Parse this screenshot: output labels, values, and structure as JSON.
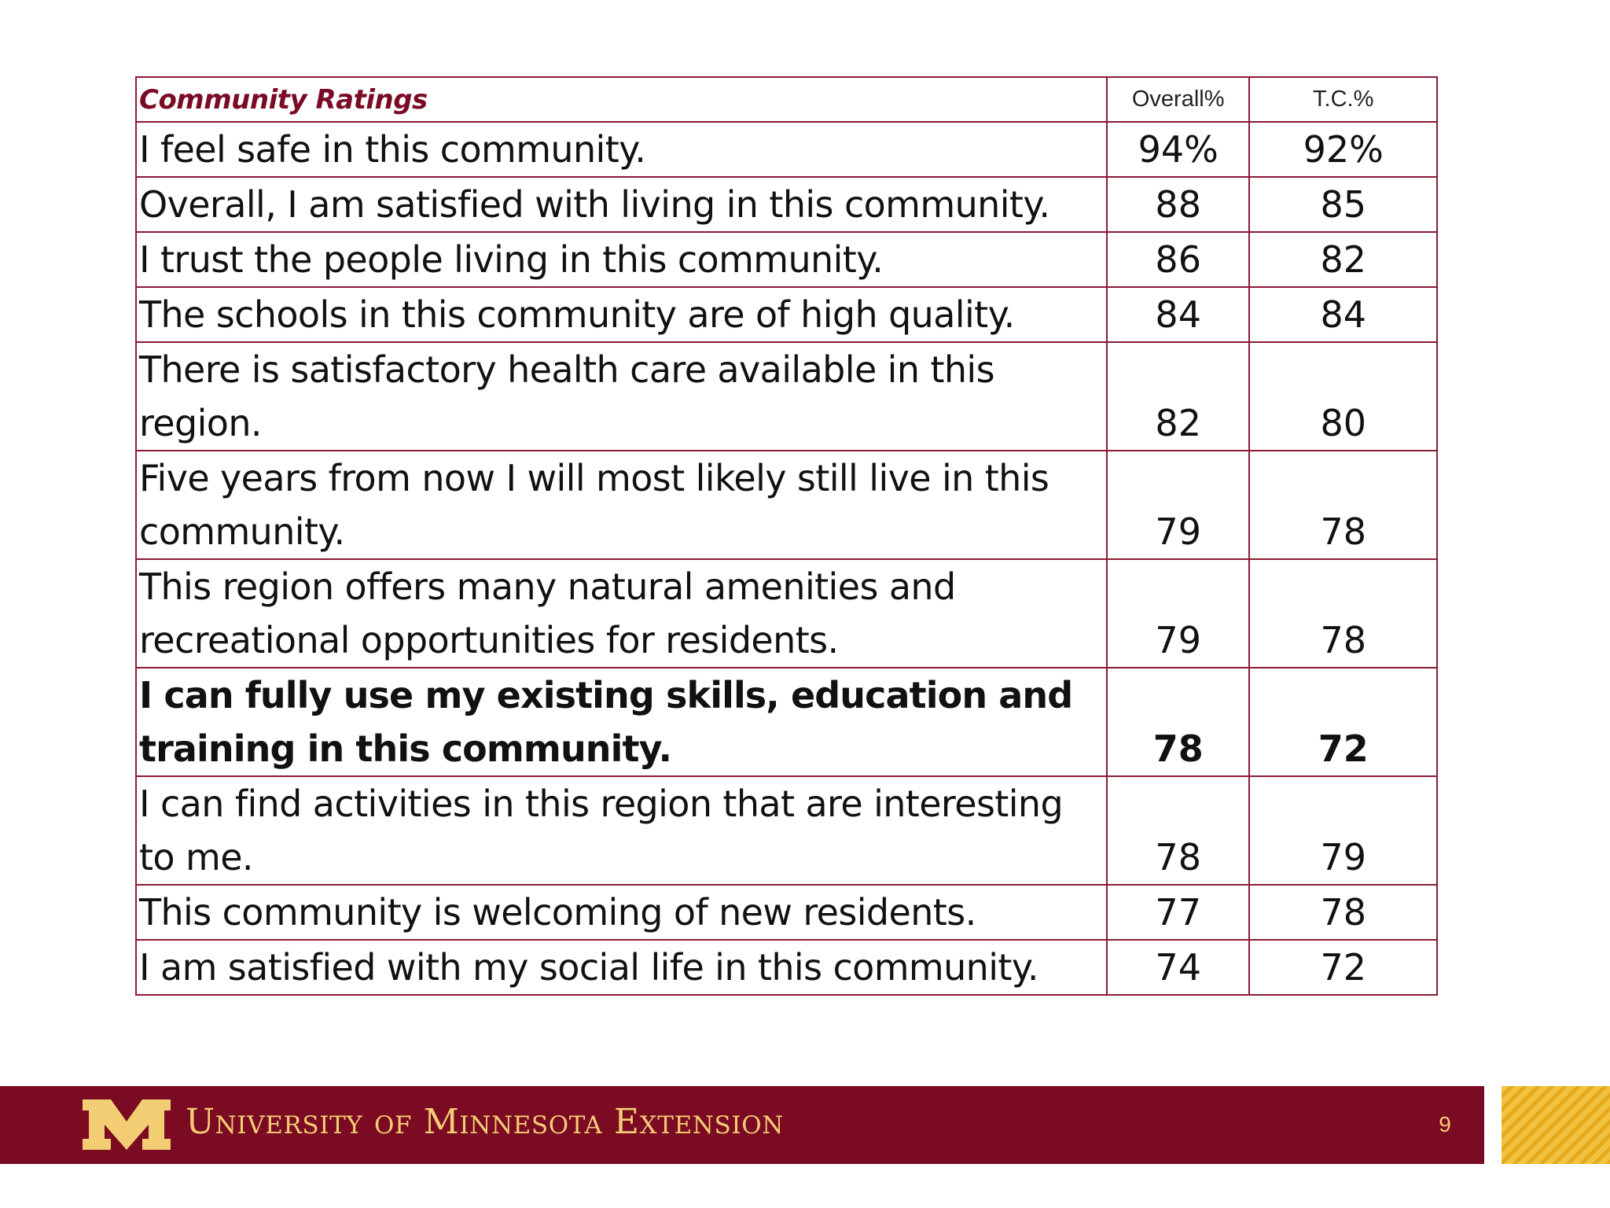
{
  "table": {
    "title": "Community Ratings",
    "columns": [
      "Overall%",
      "T.C.%"
    ],
    "rows": [
      {
        "statement": "I feel safe in this community.",
        "overall": "94%",
        "tc": "92%"
      },
      {
        "statement": "Overall, I am satisfied with living in this community.",
        "overall": "88",
        "tc": "85"
      },
      {
        "statement": "I trust the people living in this community.",
        "overall": "86",
        "tc": "82"
      },
      {
        "statement": "The schools in this community are of high quality.",
        "overall": "84",
        "tc": "84"
      },
      {
        "statement_line1": "There is satisfactory health care available in this",
        "statement_line2": "region.",
        "overall": "82",
        "tc": "80"
      },
      {
        "statement_line1": "Five years from now I will most likely still live in this",
        "statement_line2": "community.",
        "overall": "79",
        "tc": "78"
      },
      {
        "statement_line1": "This region offers many natural amenities and",
        "statement_line2": "recreational opportunities for residents.",
        "overall": "79",
        "tc": "78"
      },
      {
        "statement_line1": "I can fully use my existing skills, education and",
        "statement_line2": "training in this community.",
        "overall": "78",
        "tc": "72",
        "emphasized": true
      },
      {
        "statement_line1": "I can find activities in this region that are interesting",
        "statement_line2": "to me.",
        "overall": "78",
        "tc": "79"
      },
      {
        "statement": "This community is welcoming of new residents.",
        "overall": "77",
        "tc": "78"
      },
      {
        "statement": "I am satisfied with my social life in this community.",
        "overall": "74",
        "tc": "72"
      }
    ]
  },
  "footer": {
    "organization": "University of Minnesota Extension",
    "page_number": "9",
    "logo_icon": "university-m-logo-icon"
  },
  "colors": {
    "maroon": "#7b0a23",
    "gold": "#f3cd73",
    "table_border": "#8a1b34",
    "title_text": "#7a0b25"
  }
}
